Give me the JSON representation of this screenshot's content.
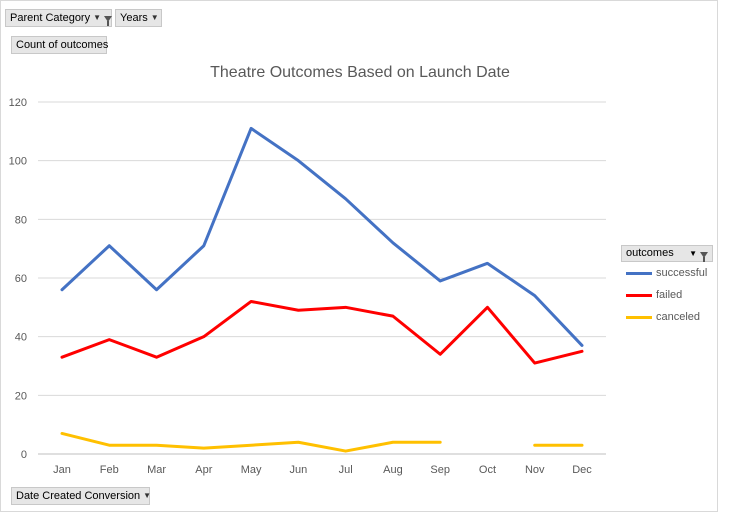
{
  "pivot": {
    "filter_parent_category": "Parent Category",
    "filter_years": "Years",
    "values_field": "Count of outcomes",
    "axis_field": "Date Created Conversion",
    "legend_field": "outcomes"
  },
  "chart_data": {
    "type": "line",
    "title": "Theatre Outcomes Based on Launch Date",
    "xlabel": "",
    "ylabel": "",
    "categories": [
      "Jan",
      "Feb",
      "Mar",
      "Apr",
      "May",
      "Jun",
      "Jul",
      "Aug",
      "Sep",
      "Oct",
      "Nov",
      "Dec"
    ],
    "ylim": [
      0,
      120
    ],
    "yticks": [
      0,
      20,
      40,
      60,
      80,
      100,
      120
    ],
    "grid": true,
    "legend_position": "right",
    "series": [
      {
        "name": "successful",
        "color": "#4472c4",
        "values": [
          56,
          71,
          56,
          71,
          111,
          100,
          87,
          72,
          59,
          65,
          54,
          37
        ]
      },
      {
        "name": "failed",
        "color": "#ff0000",
        "values": [
          33,
          39,
          33,
          40,
          52,
          49,
          50,
          47,
          34,
          50,
          31,
          35
        ]
      },
      {
        "name": "canceled",
        "color": "#ffc000",
        "values": [
          7,
          3,
          3,
          2,
          3,
          4,
          1,
          4,
          4,
          null,
          3,
          3
        ]
      }
    ]
  }
}
